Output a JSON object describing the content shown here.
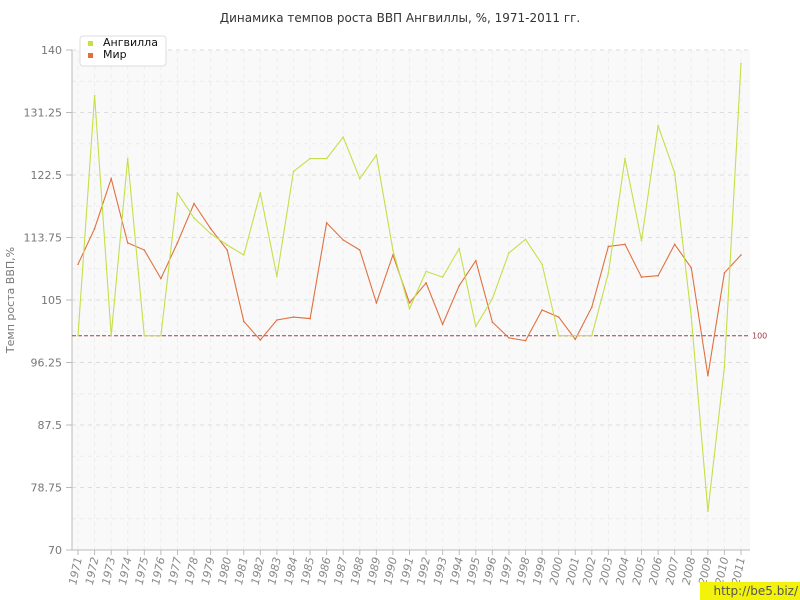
{
  "chart_data": {
    "type": "line",
    "title": "Динамика темпов роста ВВП Ангвиллы, %, 1971-2011 гг.",
    "ylabel": "Темп роста ВВП,%",
    "xlabel": "",
    "ylim": [
      70,
      140
    ],
    "yticks": [
      70,
      78.75,
      87.5,
      96.25,
      105,
      113.75,
      122.5,
      131.25,
      140
    ],
    "categories": [
      "1971",
      "1972",
      "1973",
      "1974",
      "1975",
      "1976",
      "1977",
      "1978",
      "1979",
      "1980",
      "1981",
      "1982",
      "1983",
      "1984",
      "1985",
      "1986",
      "1987",
      "1988",
      "1989",
      "1990",
      "1991",
      "1992",
      "1993",
      "1994",
      "1995",
      "1996",
      "1997",
      "1998",
      "1999",
      "2000",
      "2001",
      "2002",
      "2003",
      "2004",
      "2005",
      "2006",
      "2007",
      "2008",
      "2009",
      "2010",
      "2011"
    ],
    "series": [
      {
        "name": "Ангвилла",
        "color": "#c3e04a",
        "values": [
          100,
          133.6,
          100,
          124.8,
          100,
          100,
          120,
          116.5,
          114.3,
          112.7,
          111.3,
          120,
          108.3,
          123,
          124.8,
          124.8,
          127.8,
          122,
          125.3,
          112,
          103.8,
          109,
          108.2,
          112.2,
          101.3,
          105.2,
          111.6,
          113.5,
          110,
          100,
          100,
          100,
          108.8,
          124.8,
          113.3,
          129.4,
          122.8,
          102.6,
          75.4,
          95.6,
          138.1
        ]
      },
      {
        "name": "Мир",
        "color": "#e07040",
        "values": [
          110,
          115,
          122,
          113,
          112,
          108,
          113,
          118.5,
          115,
          112,
          102,
          99.4,
          102.2,
          102.6,
          102.4,
          115.8,
          113.4,
          112,
          104.6,
          111.3,
          104.6,
          107.4,
          101.6,
          107,
          110.5,
          101.9,
          99.7,
          99.3,
          103.6,
          102.6,
          99.5,
          104,
          112.5,
          112.8,
          108.2,
          108.4,
          112.8,
          109.5,
          94.4,
          108.8,
          111.3
        ]
      }
    ],
    "reference_line": {
      "value": 100,
      "label": "100",
      "color": "#a33a4e"
    },
    "legend": {
      "position": "top-left"
    },
    "grid": true
  },
  "watermark": "http://be5.biz/"
}
